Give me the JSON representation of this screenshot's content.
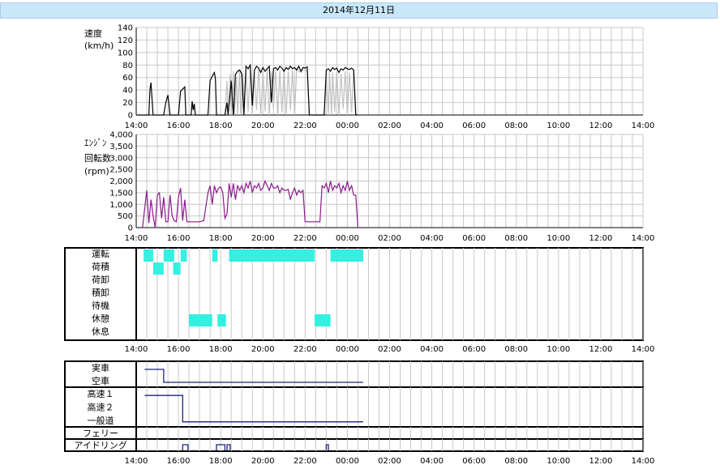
{
  "date_title": "2014年12月11日",
  "time_ticks": [
    "14:00",
    "16:00",
    "18:00",
    "20:00",
    "22:00",
    "00:00",
    "02:00",
    "04:00",
    "06:00",
    "08:00",
    "10:00",
    "12:00",
    "14:00"
  ],
  "colors": {
    "speed_primary": "#000000",
    "speed_secondary": "#c0c0c0",
    "rpm": "#8b1a8b",
    "activity": "#33f0e0",
    "status_line": "#1a237e",
    "grid": "#c8c8c8"
  },
  "chart_data": [
    {
      "type": "line",
      "ylabel": [
        "速度",
        "(km/h)"
      ],
      "yticks": [
        "140",
        "120",
        "100",
        "80",
        "60",
        "40",
        "20",
        "0"
      ],
      "ylim": [
        0,
        140
      ],
      "xlim": [
        0,
        24
      ],
      "x_unit": "hours since 14:00",
      "series": [
        {
          "color_key": "speed_secondary",
          "x": [
            4.2,
            4.3,
            4.35,
            4.45,
            4.5,
            4.6,
            4.65,
            4.75,
            4.8,
            4.9,
            4.95,
            5.05,
            5.1,
            5.2,
            5.3,
            5.4,
            5.5,
            5.6,
            5.7,
            5.8,
            5.9,
            6.0,
            6.1,
            6.2,
            6.3,
            6.4,
            6.5,
            6.6,
            6.7,
            6.8,
            6.9,
            7.0,
            7.1,
            7.2,
            7.3,
            7.4,
            7.5,
            7.6,
            7.7,
            7.8,
            7.9,
            8.0,
            8.1,
            8.2,
            8.3,
            8.4,
            8.5,
            8.6,
            8.7,
            8.8,
            8.9,
            9.0,
            9.1,
            9.15,
            9.25,
            9.3,
            9.4,
            9.5,
            9.6,
            9.7,
            9.8,
            9.9,
            10.0,
            10.1,
            10.2,
            10.3,
            10.4,
            10.5
          ],
          "y": [
            0,
            55,
            0,
            65,
            0,
            70,
            0,
            60,
            0,
            72,
            0,
            66,
            0,
            70,
            5,
            72,
            0,
            68,
            8,
            74,
            0,
            70,
            6,
            73,
            0,
            69,
            10,
            72,
            0,
            71,
            4,
            74,
            0,
            70,
            8,
            72,
            0,
            74,
            70,
            68,
            72,
            72,
            70,
            0,
            0,
            0,
            0,
            0,
            0,
            0,
            0,
            65,
            0,
            70,
            0,
            68,
            5,
            72,
            0,
            66,
            10,
            70,
            0,
            68,
            4,
            72,
            0,
            0
          ]
        },
        {
          "color_key": "speed_primary",
          "x": [
            0,
            0.4,
            0.6,
            0.65,
            0.7,
            0.8,
            1.0,
            1.3,
            1.4,
            1.5,
            1.6,
            1.8,
            2.0,
            2.1,
            2.3,
            2.35,
            2.5,
            2.6,
            2.65,
            2.7,
            2.75,
            2.8,
            2.9,
            3.0,
            3.4,
            3.5,
            3.6,
            3.7,
            3.75,
            3.8,
            4.0,
            4.1,
            4.2,
            4.3,
            4.35,
            4.45,
            4.5,
            4.6,
            4.7,
            4.8,
            4.9,
            5.0,
            5.1,
            5.2,
            5.3,
            5.4,
            5.5,
            5.6,
            5.7,
            5.8,
            5.9,
            6.0,
            6.1,
            6.2,
            6.3,
            6.4,
            6.5,
            6.6,
            6.7,
            6.8,
            6.9,
            7.0,
            7.1,
            7.2,
            7.3,
            7.4,
            7.5,
            7.6,
            7.7,
            7.8,
            7.9,
            8.0,
            8.1,
            8.2,
            8.3,
            8.4,
            8.5,
            8.6,
            8.7,
            8.8,
            8.9,
            9.0,
            9.1,
            9.2,
            9.3,
            9.4,
            9.5,
            9.6,
            9.7,
            9.8,
            9.9,
            10.0,
            10.1,
            10.2,
            10.3,
            10.4,
            10.5
          ],
          "y": [
            0,
            0,
            0,
            40,
            52,
            0,
            0,
            0,
            20,
            32,
            0,
            0,
            0,
            38,
            45,
            0,
            0,
            0,
            22,
            8,
            18,
            0,
            0,
            0,
            0,
            55,
            62,
            68,
            58,
            0,
            0,
            0,
            0,
            20,
            0,
            35,
            55,
            0,
            65,
            70,
            72,
            66,
            0,
            78,
            74,
            80,
            15,
            72,
            78,
            75,
            68,
            76,
            70,
            74,
            78,
            20,
            74,
            76,
            72,
            78,
            75,
            70,
            76,
            73,
            78,
            74,
            76,
            72,
            78,
            70,
            76,
            75,
            77,
            0,
            0,
            0,
            0,
            0,
            0,
            0,
            0,
            72,
            74,
            70,
            76,
            73,
            75,
            68,
            74,
            72,
            76,
            74,
            73,
            75,
            72,
            0,
            0
          ]
        }
      ]
    },
    {
      "type": "line",
      "ylabel": [
        "ｴﾝｼﾞﾝ",
        "回転数",
        "(rpm)"
      ],
      "yticks": [
        "4,000",
        "3,500",
        "3,000",
        "2,500",
        "2,000",
        "1,500",
        "1,000",
        "500",
        "0"
      ],
      "ylim": [
        0,
        4000
      ],
      "xlim": [
        0,
        24
      ],
      "x_unit": "hours since 14:00",
      "series": [
        {
          "color_key": "rpm",
          "x": [
            0.3,
            0.4,
            0.5,
            0.6,
            0.7,
            0.8,
            0.9,
            1.0,
            1.1,
            1.2,
            1.3,
            1.4,
            1.5,
            1.6,
            1.7,
            1.8,
            1.9,
            2.0,
            2.1,
            2.2,
            2.3,
            2.4,
            2.5,
            2.6,
            2.7,
            2.8,
            2.9,
            3.0,
            3.2,
            3.4,
            3.5,
            3.6,
            3.7,
            3.8,
            3.9,
            4.0,
            4.1,
            4.2,
            4.3,
            4.4,
            4.5,
            4.6,
            4.7,
            4.8,
            4.9,
            5.0,
            5.1,
            5.2,
            5.3,
            5.4,
            5.5,
            5.6,
            5.7,
            5.8,
            5.9,
            6.0,
            6.1,
            6.2,
            6.3,
            6.4,
            6.5,
            6.6,
            6.7,
            6.8,
            6.9,
            7.0,
            7.1,
            7.2,
            7.3,
            7.4,
            7.5,
            7.6,
            7.7,
            7.8,
            7.9,
            8.0,
            8.1,
            8.2,
            8.3,
            8.4,
            8.5,
            8.6,
            8.7,
            8.8,
            8.9,
            9.0,
            9.1,
            9.2,
            9.3,
            9.4,
            9.5,
            9.6,
            9.7,
            9.8,
            9.9,
            10.0,
            10.1,
            10.2,
            10.3,
            10.4,
            10.5
          ],
          "y": [
            0,
            800,
            1600,
            200,
            1200,
            500,
            0,
            1400,
            1500,
            400,
            1300,
            250,
            250,
            1400,
            500,
            300,
            250,
            1300,
            1700,
            300,
            1200,
            250,
            250,
            250,
            250,
            250,
            250,
            250,
            300,
            1500,
            1800,
            1000,
            1800,
            1500,
            1700,
            1750,
            1500,
            400,
            600,
            1900,
            1300,
            1900,
            1200,
            1800,
            1600,
            1800,
            1500,
            1900,
            1700,
            2000,
            1500,
            1800,
            1700,
            1900,
            1600,
            1700,
            2000,
            1800,
            1600,
            1900,
            1700,
            1700,
            1800,
            1500,
            1700,
            1600,
            1600,
            1650,
            1200,
            1500,
            1700,
            1400,
            1600,
            1500,
            1600,
            250,
            250,
            250,
            250,
            250,
            250,
            250,
            250,
            1800,
            1700,
            1900,
            1500,
            2000,
            1600,
            1800,
            1700,
            1900,
            1500,
            1800,
            1600,
            2000,
            1600,
            1800,
            1400,
            1400,
            0
          ]
        }
      ]
    },
    {
      "type": "timeline",
      "categories": [
        "運転",
        "荷積",
        "荷卸",
        "積卸",
        "待機",
        "休憩",
        "休息"
      ],
      "xlim": [
        0,
        24
      ],
      "x_unit": "hours since 14:00",
      "color_key": "activity",
      "segments": [
        {
          "row": 0,
          "start": 0.35,
          "end": 0.8
        },
        {
          "row": 0,
          "start": 1.3,
          "end": 1.8
        },
        {
          "row": 0,
          "start": 2.1,
          "end": 2.4
        },
        {
          "row": 0,
          "start": 3.6,
          "end": 3.85
        },
        {
          "row": 0,
          "start": 4.4,
          "end": 8.45
        },
        {
          "row": 0,
          "start": 9.2,
          "end": 10.75
        },
        {
          "row": 1,
          "start": 0.8,
          "end": 1.3
        },
        {
          "row": 1,
          "start": 1.75,
          "end": 2.1
        },
        {
          "row": 5,
          "start": 2.5,
          "end": 3.6
        },
        {
          "row": 5,
          "start": 3.85,
          "end": 4.25
        },
        {
          "row": 5,
          "start": 8.45,
          "end": 9.2
        }
      ]
    },
    {
      "type": "status",
      "groups": [
        {
          "rows": [
            "実車",
            "空車"
          ],
          "path": [
            [
              0.4,
              1
            ],
            [
              1.3,
              1
            ],
            [
              1.3,
              0
            ],
            [
              10.75,
              0
            ]
          ]
        },
        {
          "rows": [
            "高速１",
            "高速２",
            "一般道"
          ],
          "path": [
            [
              0.4,
              2
            ],
            [
              2.2,
              2
            ],
            [
              2.2,
              0
            ],
            [
              10.75,
              0
            ]
          ]
        },
        {
          "rows": [
            "フェリー"
          ],
          "path": []
        },
        {
          "rows": [
            "アイドリング"
          ],
          "pulses": [
            [
              2.2,
              2.45
            ],
            [
              3.8,
              4.2
            ],
            [
              4.3,
              4.45
            ],
            [
              9.0,
              9.1
            ]
          ]
        }
      ]
    }
  ]
}
